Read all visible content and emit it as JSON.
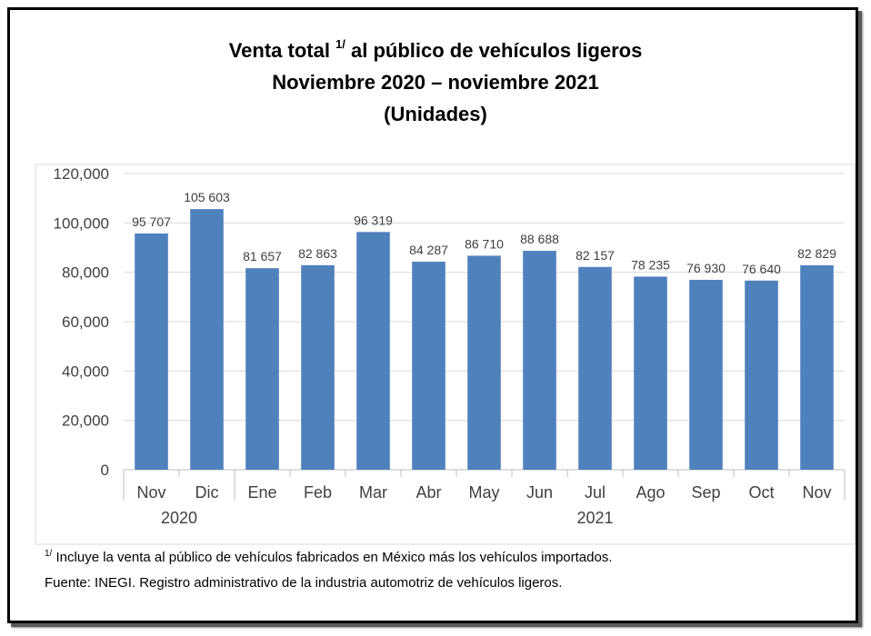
{
  "title": {
    "line1_before": "Venta total ",
    "line1_sup": "1/",
    "line1_after": " al público de vehículos ligeros",
    "line2": "Noviembre 2020 – noviembre 2021",
    "line3": "(Unidades)"
  },
  "chart_data": {
    "type": "bar",
    "categories": [
      "Nov",
      "Dic",
      "Ene",
      "Feb",
      "Mar",
      "Abr",
      "May",
      "Jun",
      "Jul",
      "Ago",
      "Sep",
      "Oct",
      "Nov"
    ],
    "values": [
      95707,
      105603,
      81657,
      82863,
      96319,
      84287,
      86710,
      88688,
      82157,
      78235,
      76930,
      76640,
      82829
    ],
    "data_labels": [
      "95 707",
      "105 603",
      "81 657",
      "82 863",
      "96 319",
      "84 287",
      "86 710",
      "88 688",
      "82 157",
      "78 235",
      "76 930",
      "76 640",
      "82 829"
    ],
    "year_labels": [
      {
        "label": "2020",
        "category_index": 0.5
      },
      {
        "label": "2021",
        "category_index": 8
      }
    ],
    "y_ticks": [
      0,
      20000,
      40000,
      60000,
      80000,
      100000,
      120000
    ],
    "y_tick_labels": [
      "0",
      "20,000",
      "40,000",
      "60,000",
      "80,000",
      "100,000",
      "120,000"
    ],
    "ylim": [
      0,
      120000
    ],
    "grid": true,
    "bar_color": "#4f81bd",
    "grid_color": "#d9d9d9"
  },
  "footnotes": {
    "note_sup": "1/",
    "note_text": " Incluye la venta al público de vehículos fabricados en México más los vehículos importados.",
    "source": "Fuente: INEGI. Registro administrativo de la industria automotriz de vehículos ligeros."
  }
}
